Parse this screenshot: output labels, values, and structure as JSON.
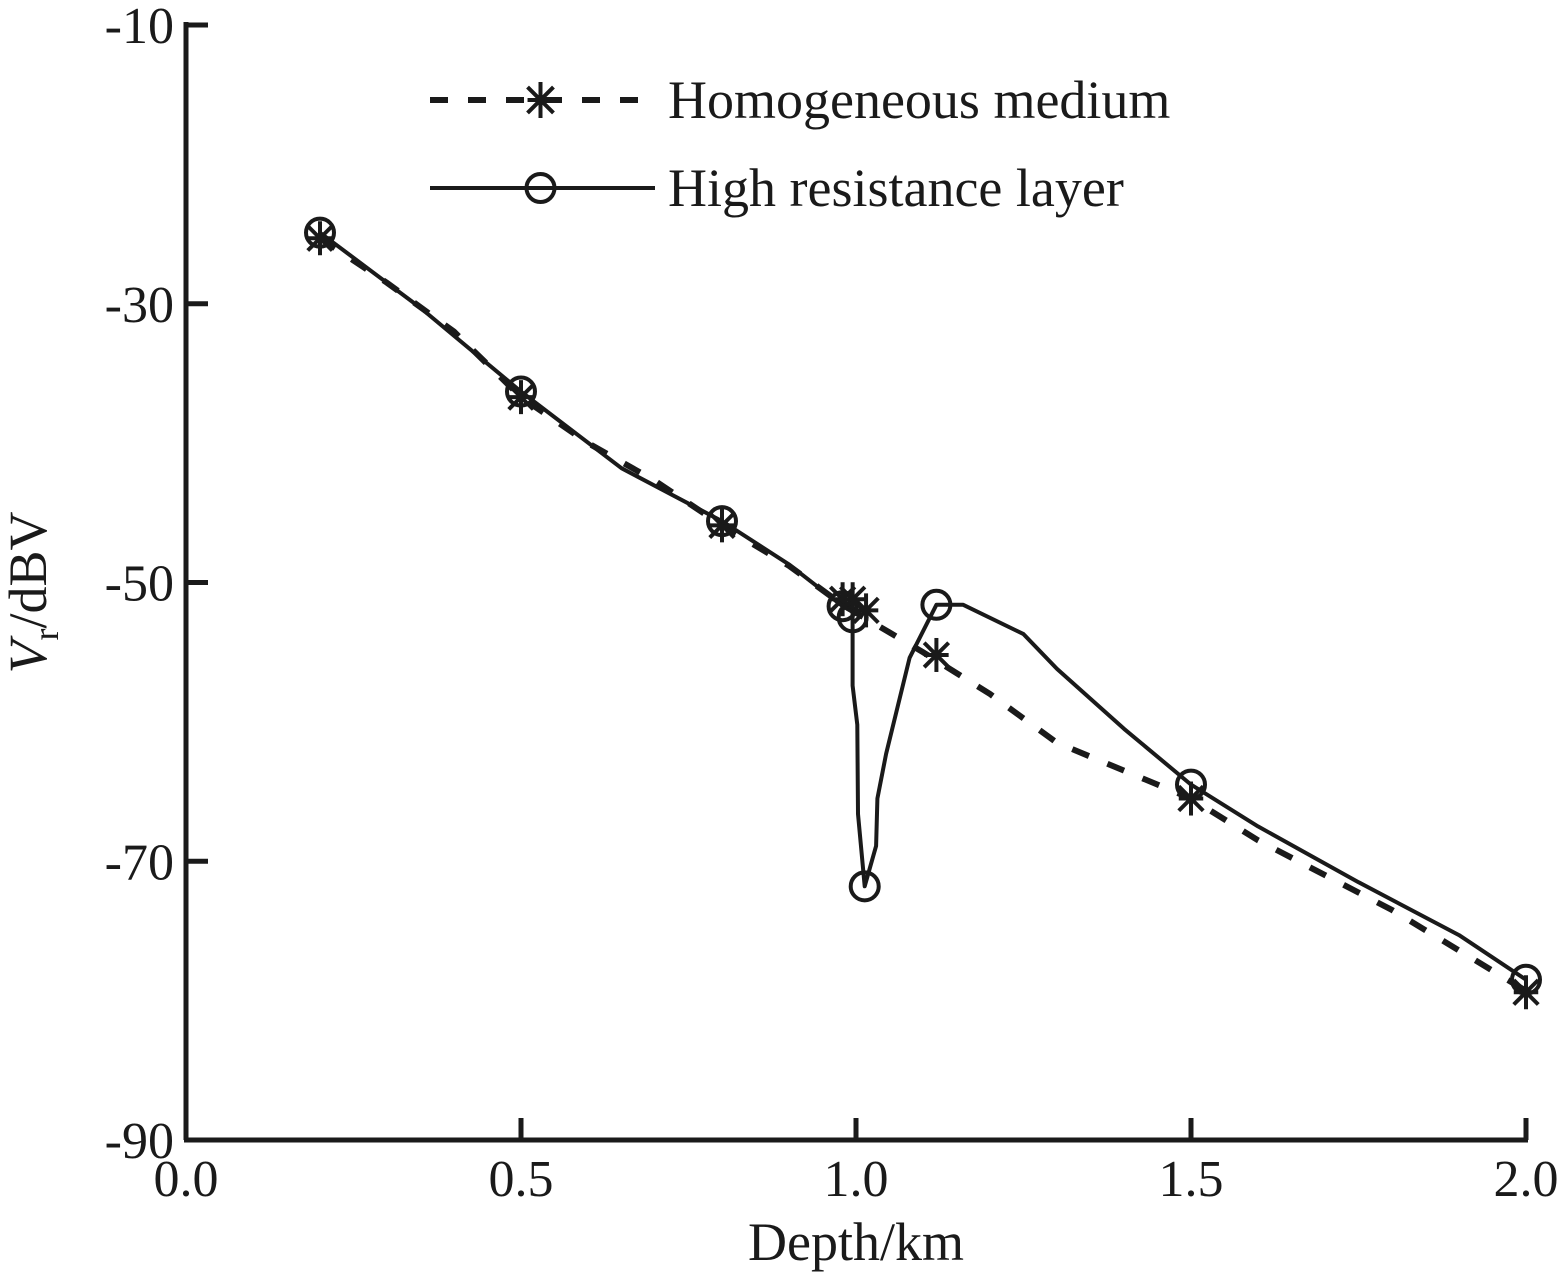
{
  "chart_data": {
    "type": "line",
    "xlabel": "Depth/km",
    "ylabel_main": "V",
    "ylabel_sub": "r",
    "ylabel_unit": "/dBV",
    "xlim": [
      0.0,
      2.0
    ],
    "ylim": [
      -90,
      -10
    ],
    "xticks": [
      "0.0",
      "0.5",
      "1.0",
      "1.5",
      "2.0"
    ],
    "yticks": [
      "-10",
      "-30",
      "-50",
      "-70",
      "-90"
    ],
    "grid": false,
    "legend_position": "top",
    "series": [
      {
        "name": "Homogeneous medium",
        "style": "dashed",
        "marker": "star",
        "line": [
          {
            "x": 0.2,
            "y": -25.3
          },
          {
            "x": 0.3,
            "y": -28.5
          },
          {
            "x": 0.4,
            "y": -32.0
          },
          {
            "x": 0.5,
            "y": -36.7
          },
          {
            "x": 0.6,
            "y": -40.0
          },
          {
            "x": 0.7,
            "y": -42.7
          },
          {
            "x": 0.8,
            "y": -45.9
          },
          {
            "x": 0.9,
            "y": -48.8
          },
          {
            "x": 0.98,
            "y": -51.6
          },
          {
            "x": 1.1,
            "y": -55.0
          },
          {
            "x": 1.2,
            "y": -58.0
          },
          {
            "x": 1.3,
            "y": -61.5
          },
          {
            "x": 1.5,
            "y": -65.5
          },
          {
            "x": 1.6,
            "y": -68.5
          },
          {
            "x": 1.8,
            "y": -73.5
          },
          {
            "x": 2.0,
            "y": -79.3
          }
        ],
        "markers": [
          {
            "x": 0.2,
            "y": -25.3
          },
          {
            "x": 0.5,
            "y": -36.7
          },
          {
            "x": 0.8,
            "y": -45.9
          },
          {
            "x": 0.98,
            "y": -51.2
          },
          {
            "x": 0.995,
            "y": -51.2
          },
          {
            "x": 1.015,
            "y": -52.0
          },
          {
            "x": 1.12,
            "y": -55.2
          },
          {
            "x": 1.5,
            "y": -65.5
          },
          {
            "x": 2.0,
            "y": -79.4
          }
        ]
      },
      {
        "name": "High resistance layer",
        "style": "solid",
        "marker": "circle",
        "line": [
          {
            "x": 0.2,
            "y": -24.9
          },
          {
            "x": 0.35,
            "y": -30.3
          },
          {
            "x": 0.5,
            "y": -36.3
          },
          {
            "x": 0.65,
            "y": -41.8
          },
          {
            "x": 0.8,
            "y": -45.6
          },
          {
            "x": 0.9,
            "y": -48.7
          },
          {
            "x": 0.98,
            "y": -51.7
          },
          {
            "x": 0.995,
            "y": -52.1
          },
          {
            "x": 0.995,
            "y": -57.4
          },
          {
            "x": 1.002,
            "y": -60.2
          },
          {
            "x": 1.003,
            "y": -66.6
          },
          {
            "x": 1.013,
            "y": -71.8
          },
          {
            "x": 1.03,
            "y": -68.9
          },
          {
            "x": 1.032,
            "y": -65.5
          },
          {
            "x": 1.045,
            "y": -62.3
          },
          {
            "x": 1.08,
            "y": -55.4
          },
          {
            "x": 1.12,
            "y": -51.6
          },
          {
            "x": 1.16,
            "y": -51.6
          },
          {
            "x": 1.25,
            "y": -53.7
          },
          {
            "x": 1.3,
            "y": -56.2
          },
          {
            "x": 1.4,
            "y": -60.5
          },
          {
            "x": 1.5,
            "y": -64.5
          },
          {
            "x": 1.6,
            "y": -67.5
          },
          {
            "x": 1.75,
            "y": -71.5
          },
          {
            "x": 1.9,
            "y": -75.3
          },
          {
            "x": 2.0,
            "y": -78.5
          }
        ],
        "markers": [
          {
            "x": 0.2,
            "y": -24.9
          },
          {
            "x": 0.5,
            "y": -36.3
          },
          {
            "x": 0.8,
            "y": -45.6
          },
          {
            "x": 0.98,
            "y": -51.7
          },
          {
            "x": 0.995,
            "y": -52.5
          },
          {
            "x": 1.013,
            "y": -71.8
          },
          {
            "x": 1.12,
            "y": -51.6
          },
          {
            "x": 1.5,
            "y": -64.5
          },
          {
            "x": 2.0,
            "y": -78.5
          }
        ]
      }
    ]
  },
  "colors": {
    "ink": "#1a1a1a",
    "background": "#ffffff"
  }
}
